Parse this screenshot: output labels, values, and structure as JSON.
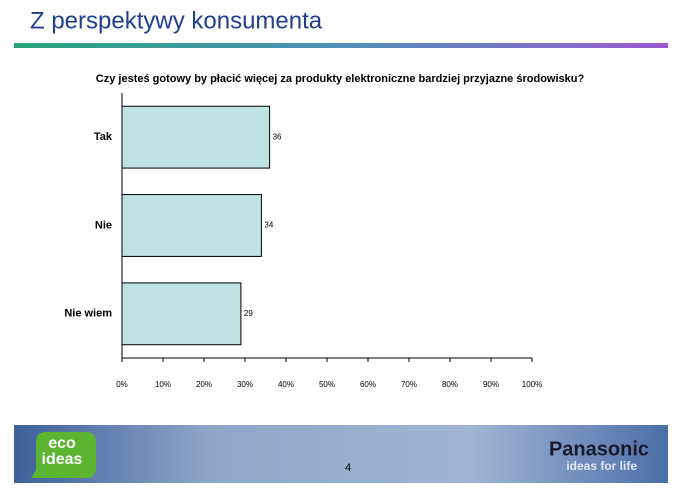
{
  "slide_title": "Z perspektywy konsumenta",
  "chart_data": {
    "type": "bar",
    "orientation": "horizontal",
    "title": "Czy jesteś gotowy by płacić więcej za produkty elektroniczne bardziej przyjazne środowisku?",
    "categories": [
      "Tak",
      "Nie",
      "Nie wiem"
    ],
    "values": [
      36,
      34,
      29
    ],
    "color": "#bfe3e3",
    "xlim": [
      0,
      100
    ],
    "xticks": [
      {
        "value": 0,
        "label": "0%"
      },
      {
        "value": 10,
        "label": "10%"
      },
      {
        "value": 20,
        "label": "20%"
      },
      {
        "value": 30,
        "label": "30%"
      },
      {
        "value": 40,
        "label": "40%"
      },
      {
        "value": 50,
        "label": "50%"
      },
      {
        "value": 60,
        "label": "60%"
      },
      {
        "value": 70,
        "label": "70%"
      },
      {
        "value": 80,
        "label": "80%"
      },
      {
        "value": 90,
        "label": "90%"
      },
      {
        "value": 100,
        "label": "100%"
      }
    ],
    "grid": false
  },
  "footer": {
    "logo": [
      "eco",
      "ideas"
    ],
    "brand": "Panasonic",
    "tagline": "ideas for life",
    "page": "4"
  }
}
